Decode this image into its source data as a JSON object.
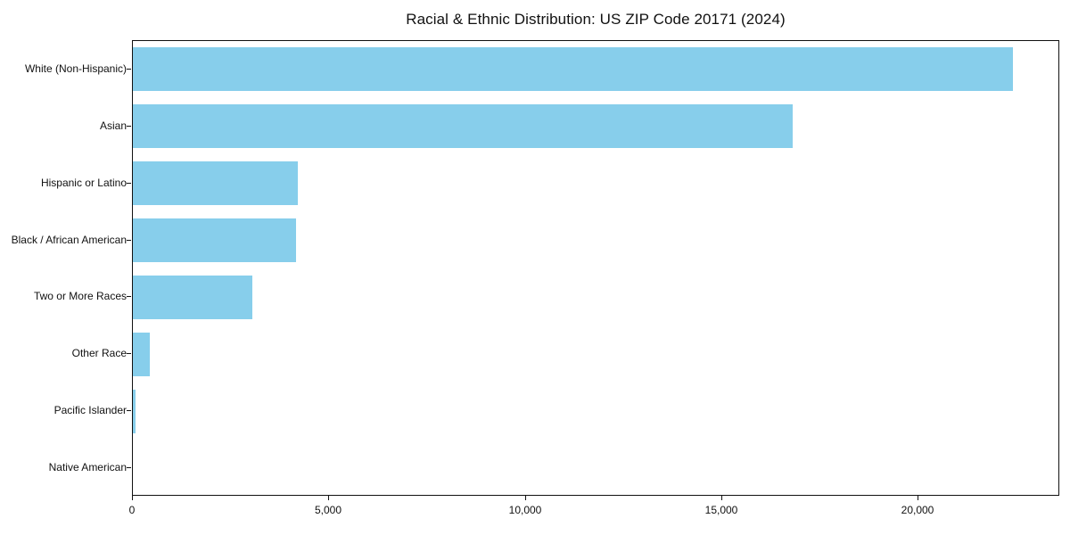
{
  "chart_data": {
    "type": "bar",
    "orientation": "horizontal",
    "title": "Racial & Ethnic Distribution: US ZIP Code 20171 (2024)",
    "categories": [
      "White (Non-Hispanic)",
      "Asian",
      "Hispanic or Latino",
      "Black / African American",
      "Two or More Races",
      "Other Race",
      "Pacific Islander",
      "Native American"
    ],
    "values": [
      22400,
      16800,
      4200,
      4150,
      3050,
      420,
      60,
      10
    ],
    "xlim": [
      0,
      23600
    ],
    "x_ticks": [
      0,
      5000,
      10000,
      15000,
      20000
    ],
    "x_tick_labels": [
      "0",
      "5,000",
      "10,000",
      "15,000",
      "20,000"
    ],
    "bar_color": "#87CEEB",
    "grid": false,
    "legend": null,
    "xlabel": "",
    "ylabel": ""
  }
}
